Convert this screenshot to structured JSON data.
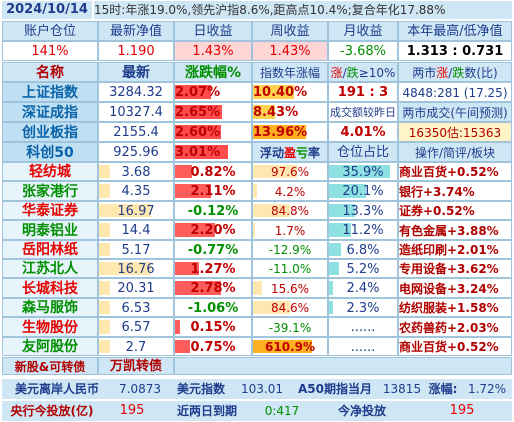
{
  "header": {
    "date": "2024/10/14",
    "summary": "15时:年涨19.0%,领先沪指8.6%,距高点10.4%;复合年化17.88%"
  },
  "account": {
    "labels": [
      "账户仓位",
      "最新净值",
      "日收益",
      "周收益",
      "月收益",
      "本年最高/低净值"
    ],
    "values": [
      "141%",
      "1.190",
      "1.43%",
      "1.43%",
      "-3.68%",
      "1.313 : 0.731"
    ]
  },
  "index_header": [
    "名称",
    "最新",
    "涨跌幅%",
    "指数年涨幅",
    "涨/跌≥10%",
    "两市涨/跌数(比)"
  ],
  "indices": [
    {
      "name": "上证指数",
      "price": "3284.32",
      "change": "2.07%",
      "col4": "10.40%",
      "col5": "191 : 3",
      "col6": "4848:281 (17.25)"
    },
    {
      "name": "深证成指",
      "price": "10327.4",
      "change": "2.65%",
      "col4": "8.43%",
      "col5": "成交额较昨日",
      "col6": "两市成交(午间预测)"
    },
    {
      "name": "创业板指",
      "price": "2155.4",
      "change": "2.60%",
      "col4": "13.96%",
      "col5": "4.01%",
      "col6": "16350估:15363"
    },
    {
      "name": "科创50",
      "price": "925.96",
      "change": "3.01%",
      "col4": "浮动盈亏率",
      "col5": "仓位占比",
      "col6": "操作/简评/板块"
    }
  ],
  "stocks": [
    {
      "name": "轻纺城",
      "price": "3.68",
      "change": "0.82%",
      "pnl": "97.6%",
      "pos": "35.9%",
      "note": "商业百货+0.52%"
    },
    {
      "name": "张家港行",
      "price": "4.35",
      "change": "2.11%",
      "pnl": "4.2%",
      "pos": "20.1%",
      "note": "银行+3.74%"
    },
    {
      "name": "华泰证券",
      "price": "16.97",
      "change": "-0.12%",
      "pnl": "84.8%",
      "pos": "13.3%",
      "note": "证券+0.52%"
    },
    {
      "name": "明泰铝业",
      "price": "14.4",
      "change": "2.20%",
      "pnl": "1.7%",
      "pos": "11.2%",
      "note": "有色金属+3.88%"
    },
    {
      "name": "岳阳林纸",
      "price": "5.17",
      "change": "-0.77%",
      "pnl": "-12.9%",
      "pos": "6.8%",
      "note": "造纸印刷+2.01%"
    },
    {
      "name": "江苏北人",
      "price": "16.76",
      "change": "1.27%",
      "pnl": "-11.0%",
      "pos": "5.2%",
      "note": "专用设备+3.62%"
    },
    {
      "name": "长城科技",
      "price": "20.31",
      "change": "2.78%",
      "pnl": "15.6%",
      "pos": "2.4%",
      "note": "电网设备+3.24%"
    },
    {
      "name": "森马服饰",
      "price": "6.53",
      "change": "-1.06%",
      "pnl": "84.6%",
      "pos": "2.3%",
      "note": "纺织服装+1.58%"
    },
    {
      "name": "生物股份",
      "price": "6.57",
      "change": "0.15%",
      "pnl": "-39.1%",
      "pos": "......",
      "note": "农药兽药+2.03%"
    },
    {
      "name": "友阿股份",
      "price": "2.7",
      "change": "0.75%",
      "pnl": "610.9%",
      "pos": "......",
      "note": "商业百货+0.52%"
    }
  ],
  "extra_row": {
    "a": "新股&可转债",
    "b": "万凯转债"
  },
  "footer1": {
    "label1": "美元离岸人民币",
    "value1": "7.0873",
    "label2": "美元指数",
    "value2": "103.01",
    "label3": "A50期指当月",
    "value3": "13815",
    "label4": "涨幅:",
    "value4": "1.72%"
  },
  "footer2": {
    "label1": "央行今投放(亿)",
    "value1": "195",
    "label2": "近两日到期",
    "value2": "0:417",
    "label3": "今净投放",
    "value3": "195"
  }
}
